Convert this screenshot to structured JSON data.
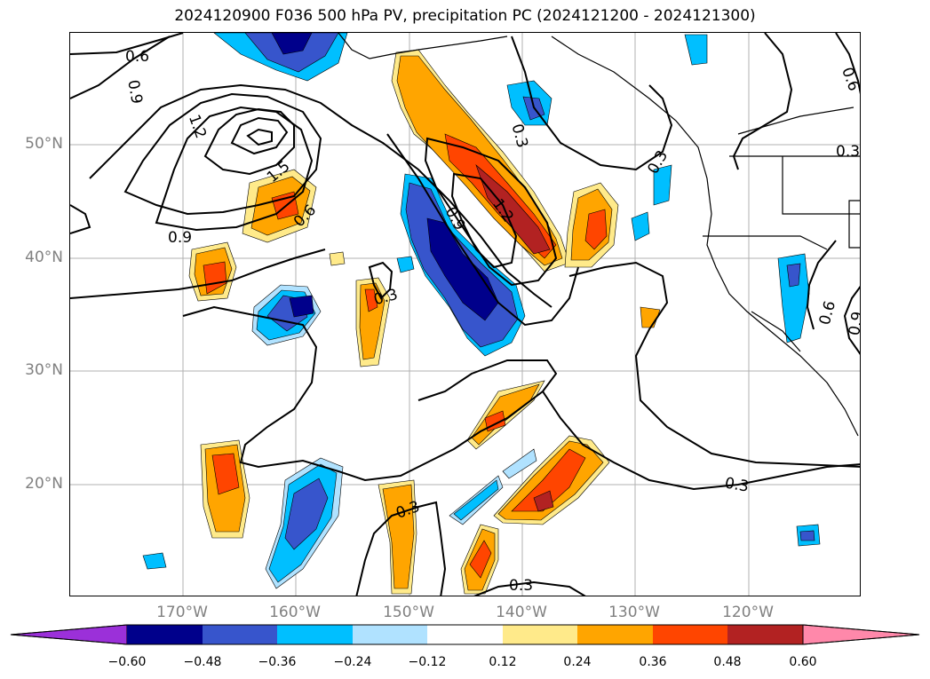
{
  "title": "2024120900 F036 500 hPa PV, precipitation PC (2024121200 - 2024121300)",
  "lat_labels": [
    "50°N",
    "40°N",
    "30°N",
    "20°N"
  ],
  "lon_labels": [
    "170°W",
    "160°W",
    "150°W",
    "140°W",
    "130°W",
    "120°W"
  ],
  "contour_labels": [
    "0.6",
    "0.9",
    "1.2",
    "1.5",
    "0.9",
    "0.6",
    "0.9",
    "0.3",
    "1.2",
    "0.9",
    "0.6",
    "0.3",
    "0.3",
    "0.3",
    "0.3",
    "0.3",
    "0.3",
    "0.6",
    "0.9",
    "0.6"
  ],
  "colorbar": {
    "ticks": [
      "−0.60",
      "−0.48",
      "−0.36",
      "−0.24",
      "−0.12",
      "0.12",
      "0.24",
      "0.36",
      "0.48",
      "0.60"
    ],
    "colors": [
      "#9b30d9",
      "#00008b",
      "#3755cc",
      "#00bfff",
      "#b0e2ff",
      "#ffffff",
      "#ffea8a",
      "#ffa500",
      "#ff4500",
      "#b22222",
      "#ff88aa"
    ]
  }
}
